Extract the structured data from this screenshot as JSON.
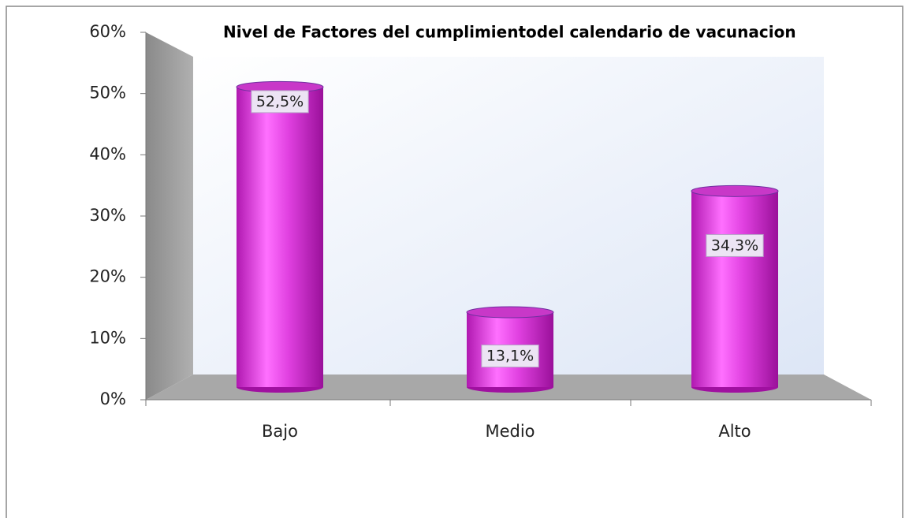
{
  "chart_data": {
    "type": "bar3d",
    "title": "Nivel de Factores del cumplimientodel calendario de vacunacion",
    "categories": [
      "Bajo",
      "Medio",
      "Alto"
    ],
    "values": [
      52.5,
      13.1,
      34.3
    ],
    "value_labels": [
      "52,5%",
      "13,1%",
      "34,3%"
    ],
    "color": "#e040e0",
    "ylim": [
      0,
      60
    ],
    "yticks": [
      {
        "value": 0,
        "label": "0%"
      },
      {
        "value": 10,
        "label": "10%"
      },
      {
        "value": 20,
        "label": "20%"
      },
      {
        "value": 30,
        "label": "30%"
      },
      {
        "value": 40,
        "label": "40%"
      },
      {
        "value": 50,
        "label": "50%"
      },
      {
        "value": 60,
        "label": "60%"
      }
    ],
    "grid": false
  }
}
